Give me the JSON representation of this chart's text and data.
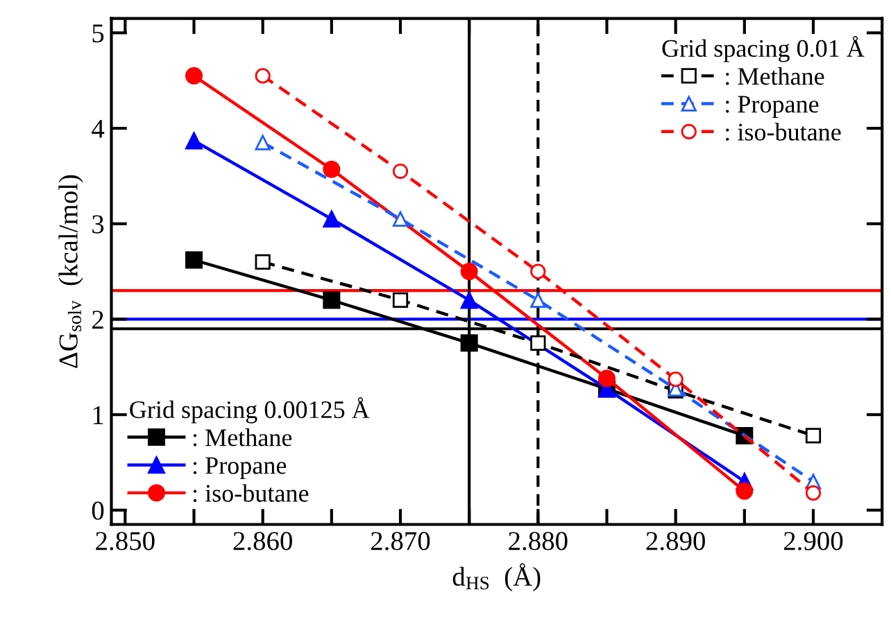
{
  "chart_data": {
    "type": "line",
    "xlabel": "d$_{HS}$  (Å)",
    "ylabel": "ΔG$_{solv}$  (kcal/mol)",
    "xlim": [
      2.849,
      2.905
    ],
    "ylim": [
      -0.15,
      5.15
    ],
    "xticks": [
      {
        "value": 2.85,
        "label": "2.850"
      },
      {
        "value": 2.855,
        "label": null
      },
      {
        "value": 2.86,
        "label": "2.860"
      },
      {
        "value": 2.865,
        "label": null
      },
      {
        "value": 2.87,
        "label": "2.870"
      },
      {
        "value": 2.875,
        "label": null
      },
      {
        "value": 2.88,
        "label": "2.880"
      },
      {
        "value": 2.885,
        "label": null
      },
      {
        "value": 2.89,
        "label": "2.890"
      },
      {
        "value": 2.895,
        "label": null
      },
      {
        "value": 2.9,
        "label": "2.900"
      }
    ],
    "yticks": [
      0,
      1,
      2,
      3,
      4,
      5
    ],
    "grid": false,
    "legend": [
      "bottom left",
      "top right"
    ],
    "legend_title": [
      "Grid spacing 0.00125 Å",
      "Grid spacing 0.01 Å"
    ],
    "series": [
      {
        "name": ": Methane",
        "color": "#000000",
        "marker": "square",
        "line_style": "solid",
        "x": [
          2.855,
          2.865,
          2.875,
          2.885,
          2.895
        ],
        "values": [
          2.62,
          2.2,
          1.75,
          1.27,
          0.78
        ]
      },
      {
        "name": ": Propane",
        "color": "#0000ff",
        "marker": "triangle",
        "line_style": "solid",
        "x": [
          2.855,
          2.865,
          2.875,
          2.885,
          2.895
        ],
        "values": [
          3.87,
          3.05,
          2.2,
          1.27,
          0.3
        ]
      },
      {
        "name": ": iso-butane",
        "color": "#ff0000",
        "marker": "circle",
        "line_style": "solid",
        "x": [
          2.855,
          2.865,
          2.875,
          2.885,
          2.895
        ],
        "values": [
          4.55,
          3.57,
          2.5,
          1.38,
          0.2
        ]
      },
      {
        "name": ": Methane",
        "color": "#000000",
        "marker": "square",
        "line_style": "dashed",
        "x": [
          2.86,
          2.87,
          2.88,
          2.89,
          2.9
        ],
        "values": [
          2.6,
          2.2,
          1.75,
          1.25,
          0.78
        ]
      },
      {
        "name": ": Propane",
        "color": "#1a5cff",
        "marker": "triangle",
        "line_style": "dashed",
        "x": [
          2.86,
          2.87,
          2.88,
          2.89,
          2.9
        ],
        "values": [
          3.85,
          3.05,
          2.2,
          1.27,
          0.3
        ]
      },
      {
        "name": ": iso-butane",
        "color": "#ff0000",
        "marker": "circle",
        "line_style": "dashed",
        "x": [
          2.86,
          2.87,
          2.88,
          2.89,
          2.9
        ],
        "values": [
          4.55,
          3.55,
          2.5,
          1.37,
          0.18
        ]
      }
    ],
    "ref_lines": [
      {
        "axis": "y",
        "value": 2.3,
        "color": "#ff0000",
        "line_style": "solid"
      },
      {
        "axis": "y",
        "value": 2.0,
        "color": "#0000ff",
        "line_style": "solid"
      },
      {
        "axis": "y",
        "value": 1.9,
        "color": "#000000",
        "line_style": "solid"
      },
      {
        "axis": "x",
        "value": 2.875,
        "color": "#000000",
        "line_style": "solid"
      },
      {
        "axis": "x",
        "value": 2.88,
        "color": "#000000",
        "line_style": "dashed"
      }
    ]
  }
}
